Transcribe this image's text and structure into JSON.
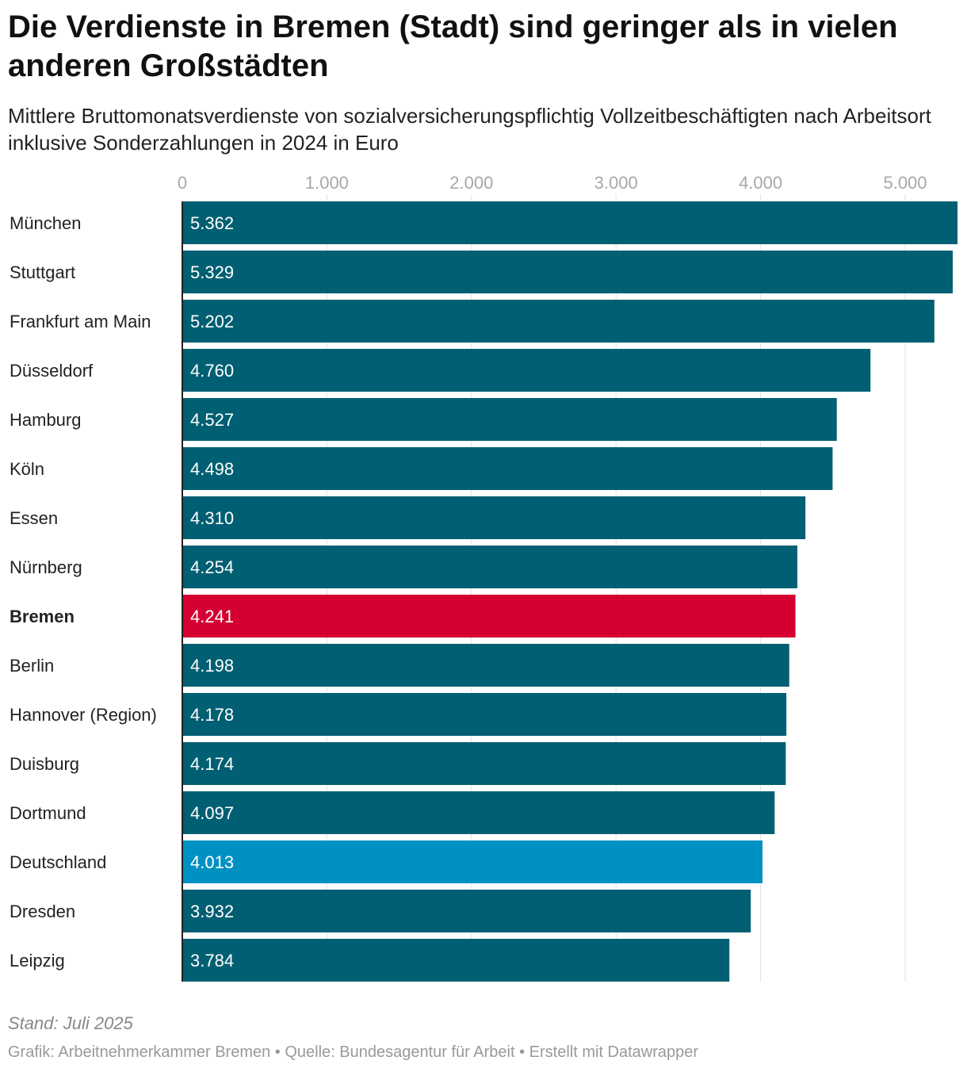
{
  "header": {
    "title": "Die Verdienste in Bremen (Stadt) sind geringer als in vielen anderen Großstädten",
    "subtitle": "Mittlere Bruttomonatsverdienste von sozialversicherungspflichtig Vollzeitbeschäftigten nach Arbeitsort inklusive Sonderzahlungen in 2024 in Euro"
  },
  "chart_data": {
    "type": "bar",
    "orientation": "horizontal",
    "xlim": [
      0,
      5362
    ],
    "ticks": [
      0,
      1000,
      2000,
      3000,
      4000,
      5000
    ],
    "tick_labels": [
      "0",
      "1.000",
      "2.000",
      "3.000",
      "4.000",
      "5.000"
    ],
    "grid": true,
    "categories": [
      "München",
      "Stuttgart",
      "Frankfurt am Main",
      "Düsseldorf",
      "Hamburg",
      "Köln",
      "Essen",
      "Nürnberg",
      "Bremen",
      "Berlin",
      "Hannover (Region)",
      "Duisburg",
      "Dortmund",
      "Deutschland",
      "Dresden",
      "Leipzig"
    ],
    "values": [
      5362,
      5329,
      5202,
      4760,
      4527,
      4498,
      4310,
      4254,
      4241,
      4198,
      4178,
      4174,
      4097,
      4013,
      3932,
      3784
    ],
    "value_labels": [
      "5.362",
      "5.329",
      "5.202",
      "4.760",
      "4.527",
      "4.498",
      "4.310",
      "4.254",
      "4.241",
      "4.198",
      "4.178",
      "4.174",
      "4.097",
      "4.013",
      "3.932",
      "3.784"
    ],
    "highlight": {
      "Bremen": "#d50032",
      "Deutschland": "#0091c3"
    },
    "bold": [
      "Bremen"
    ],
    "colors": {
      "default": "#005f72",
      "grid": "#e2e2e2",
      "axis": "#222222",
      "tick": "#a8a8a8"
    }
  },
  "footer": {
    "stand": "Stand: Juli 2025",
    "credits": "Grafik: Arbeitnehmerkammer Bremen • Quelle: Bundesagentur für Arbeit • Erstellt mit Datawrapper"
  }
}
